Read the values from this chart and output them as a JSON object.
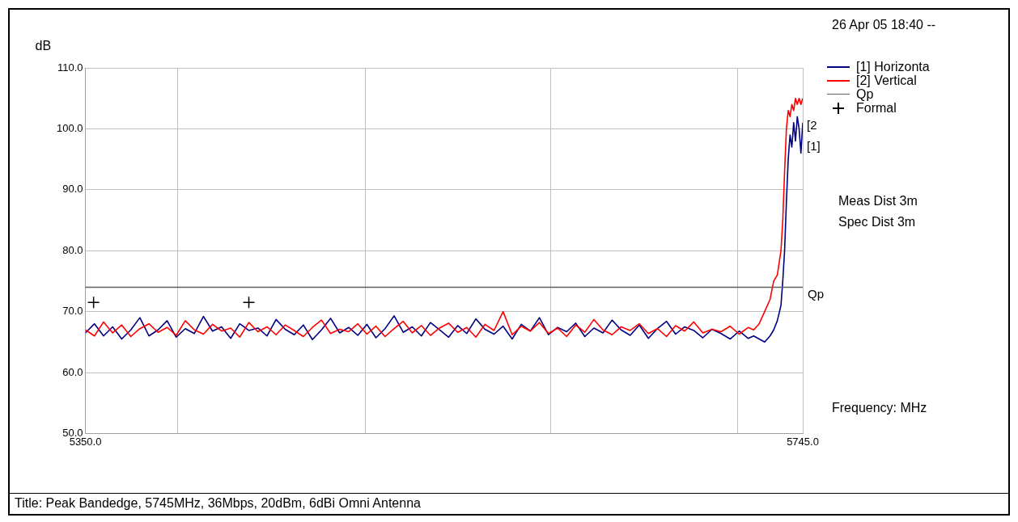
{
  "chart_data": {
    "type": "line",
    "xlabel": "Frequency: MHz",
    "ylabel": "dB",
    "annotations": [
      "26 Apr 05 18:40 --",
      "Meas Dist 3m",
      "Spec Dist 3m",
      "Title: Peak Bandedge, 5745MHz, 36Mbps, 20dBm, 6dBi Omni Antenna",
      {
        "text": "[2",
        "x": 5745,
        "y": 100.5
      },
      {
        "text": "[1]",
        "x": 5745,
        "y": 97
      }
    ],
    "x": [
      5350,
      5355,
      5360,
      5365,
      5370,
      5375,
      5380,
      5385,
      5390,
      5395,
      5400,
      5405,
      5410,
      5415,
      5420,
      5425,
      5430,
      5435,
      5440,
      5445,
      5450,
      5455,
      5460,
      5465,
      5470,
      5475,
      5480,
      5485,
      5490,
      5495,
      5500,
      5505,
      5510,
      5515,
      5520,
      5525,
      5530,
      5535,
      5540,
      5545,
      5550,
      5555,
      5560,
      5565,
      5570,
      5575,
      5580,
      5585,
      5590,
      5595,
      5600,
      5605,
      5610,
      5615,
      5620,
      5625,
      5630,
      5635,
      5640,
      5645,
      5650,
      5655,
      5660,
      5665,
      5670,
      5675,
      5680,
      5685,
      5690,
      5695,
      5700,
      5705,
      5710,
      5715,
      5718,
      5721,
      5724,
      5727,
      5729,
      5731,
      5733,
      5734,
      5735,
      5736,
      5737,
      5738,
      5739,
      5740,
      5741,
      5742,
      5743,
      5744,
      5745
    ],
    "series": [
      {
        "name": "[1] Horizonta",
        "color": "#000080",
        "values": [
          66.5,
          68,
          66,
          67.5,
          65.5,
          67,
          69,
          66,
          67,
          68.5,
          65.8,
          67.2,
          66.4,
          69.2,
          66.8,
          67.5,
          65.6,
          68,
          66.9,
          67.3,
          66,
          68.7,
          67.1,
          66.2,
          67.8,
          65.4,
          67,
          68.9,
          66.5,
          67.4,
          66.1,
          67.9,
          65.7,
          67.2,
          69.3,
          66.6,
          67.5,
          66,
          68.2,
          67,
          65.8,
          67.7,
          66.4,
          68.8,
          67.1,
          66.3,
          67.6,
          65.5,
          67.9,
          66.8,
          69,
          66.2,
          67.4,
          66.7,
          68.1,
          65.9,
          67.3,
          66.5,
          68.6,
          67,
          66.1,
          67.8,
          65.6,
          67.2,
          68.4,
          66.3,
          67.5,
          66.9,
          65.7,
          67.1,
          66.4,
          65.5,
          66.8,
          65.6,
          66,
          65.5,
          65,
          66,
          67,
          68.5,
          71,
          75,
          80,
          88,
          95,
          99,
          97,
          101,
          98,
          102,
          100,
          96,
          101
        ]
      },
      {
        "name": "[2] Vertical",
        "color": "#ff0000",
        "values": [
          67,
          66,
          68.3,
          66.5,
          67.8,
          65.9,
          67.2,
          68,
          66.6,
          67.4,
          66.1,
          68.5,
          67,
          66.3,
          67.9,
          66.8,
          67.3,
          65.8,
          68.2,
          66.7,
          67.5,
          66.2,
          67.8,
          66.9,
          65.9,
          67.4,
          68.6,
          66.4,
          67.1,
          66.7,
          68,
          66.3,
          67.6,
          65.9,
          67.2,
          68.4,
          66.5,
          67.7,
          66.1,
          67.3,
          68.1,
          66.6,
          67.4,
          65.8,
          67.9,
          66.9,
          70,
          66.2,
          67.6,
          66.8,
          68.2,
          66.4,
          67.3,
          65.9,
          67.8,
          66.6,
          68.7,
          67,
          66.2,
          67.5,
          66.9,
          68,
          66.4,
          67.2,
          65.9,
          67.7,
          66.8,
          68.3,
          66.5,
          67.1,
          66.7,
          67.6,
          66.3,
          67.4,
          67,
          68,
          70,
          72,
          75,
          76,
          80,
          85,
          93,
          100,
          103,
          102,
          104,
          103,
          105,
          104,
          105,
          104,
          105
        ]
      },
      {
        "name": "Formal",
        "type": "scatter",
        "color": "#000000",
        "marker": "cross",
        "x": [
          5354.5,
          5440
        ],
        "values": [
          71.5,
          71.5
        ]
      }
    ],
    "ref_lines": [
      {
        "axis": "y",
        "value": 74,
        "label": "Qp",
        "color": "#606060"
      }
    ],
    "xlim": [
      5350,
      5745
    ],
    "xticks": [
      {
        "value": 5350,
        "label": "5350.0"
      },
      {
        "value": 5401,
        "label": null
      },
      {
        "value": 5504,
        "label": null
      },
      {
        "value": 5606,
        "label": null
      },
      {
        "value": 5709,
        "label": null
      },
      {
        "value": 5745,
        "label": "5745.0"
      }
    ],
    "ylim": [
      50,
      110
    ],
    "yticks": [
      {
        "value": 50,
        "label": "50.0"
      },
      {
        "value": 60,
        "label": "60.0"
      },
      {
        "value": 70,
        "label": "70.0"
      },
      {
        "value": 80,
        "label": "80.0"
      },
      {
        "value": 90,
        "label": "90.0"
      },
      {
        "value": 100,
        "label": "100.0"
      },
      {
        "value": 110,
        "label": "110.0"
      }
    ],
    "grid": true,
    "legend": "top right"
  }
}
